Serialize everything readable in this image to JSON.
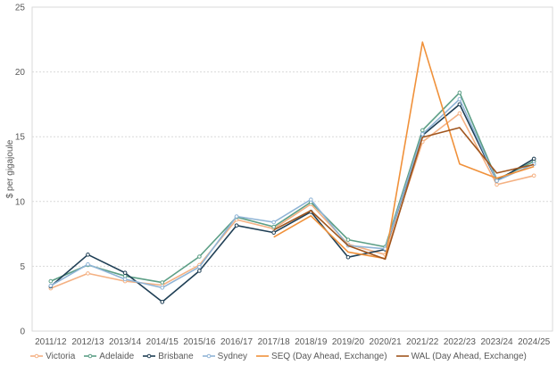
{
  "chart_data": {
    "type": "line",
    "title": "",
    "xlabel": "",
    "ylabel": "$ per gigajoule",
    "ylim": [
      0,
      25
    ],
    "yticks": [
      0,
      5,
      10,
      15,
      20,
      25
    ],
    "grid": true,
    "legend_position": "bottom",
    "categories": [
      "2011/12",
      "2012/13",
      "2013/14",
      "2014/15",
      "2015/16",
      "2016/17",
      "2017/18",
      "2018/19",
      "2019/20",
      "2020/21",
      "2021/22",
      "2022/23",
      "2023/24",
      "2024/25"
    ],
    "series": [
      {
        "name": "Victoria",
        "color": "#F4B183",
        "marker": true,
        "values": [
          3.3,
          4.45,
          3.85,
          3.55,
          5.1,
          8.6,
          7.9,
          9.8,
          6.7,
          5.9,
          14.6,
          16.8,
          11.3,
          12.0
        ]
      },
      {
        "name": "Adelaide",
        "color": "#5B9E85",
        "marker": true,
        "values": [
          3.85,
          5.1,
          4.25,
          3.75,
          5.75,
          8.8,
          8.05,
          9.95,
          7.05,
          6.5,
          15.5,
          18.4,
          11.7,
          13.1
        ]
      },
      {
        "name": "Brisbane",
        "color": "#1F3F55",
        "marker": true,
        "values": [
          3.45,
          5.9,
          4.5,
          2.25,
          4.65,
          8.15,
          7.6,
          9.2,
          5.7,
          6.3,
          15.1,
          17.5,
          11.6,
          13.3
        ]
      },
      {
        "name": "Sydney",
        "color": "#8FB4D6",
        "marker": true,
        "values": [
          3.5,
          5.15,
          4.0,
          3.35,
          4.95,
          8.85,
          8.4,
          10.15,
          6.6,
          6.35,
          15.2,
          17.9,
          11.6,
          12.9
        ]
      },
      {
        "name": "SEQ (Day Ahead, Exchange)",
        "color": "#F0913A",
        "marker": false,
        "values": [
          null,
          null,
          null,
          null,
          null,
          null,
          7.25,
          8.9,
          6.1,
          5.6,
          22.3,
          12.9,
          11.8,
          12.7
        ]
      },
      {
        "name": "WAL (Day Ahead, Exchange)",
        "color": "#A0551E",
        "marker": false,
        "values": [
          null,
          null,
          null,
          null,
          null,
          null,
          7.8,
          9.3,
          6.6,
          5.55,
          14.95,
          15.7,
          12.2,
          12.85
        ]
      }
    ]
  },
  "axis": {
    "ylabel": "$ per gigajoule"
  }
}
